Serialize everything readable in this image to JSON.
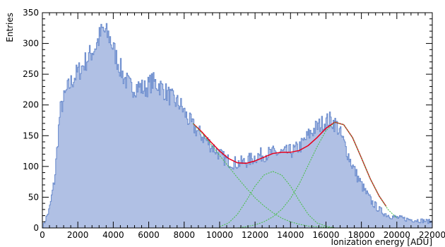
{
  "chart_data": {
    "type": "area",
    "title": "",
    "xlabel": "Ionization energy [ADU]",
    "ylabel": "Entries",
    "xlim": [
      0,
      22000
    ],
    "ylim": [
      0,
      350
    ],
    "grid": false,
    "legend": "none",
    "x_tick_values": [
      0,
      2000,
      4000,
      6000,
      8000,
      10000,
      12000,
      14000,
      16000,
      18000,
      20000,
      22000
    ],
    "x_tick_labels": [
      "0",
      "2000",
      "4000",
      "6000",
      "8000",
      "10000",
      "12000",
      "14000",
      "16000",
      "18000",
      "20000",
      "22000"
    ],
    "y_tick_values": [
      0,
      50,
      100,
      150,
      200,
      250,
      300,
      350
    ],
    "y_tick_labels": [
      "0",
      "50",
      "100",
      "150",
      "200",
      "250",
      "300",
      "350"
    ],
    "histogram": {
      "bin_width": 50,
      "x": [
        0,
        400,
        700,
        1000,
        1400,
        1800,
        2200,
        2600,
        3000,
        3400,
        3800,
        4200,
        4600,
        5000,
        5400,
        5800,
        6200,
        6600,
        7000,
        7400,
        7800,
        8200,
        8600,
        9000,
        9400,
        9800,
        10200,
        10600,
        11000,
        11400,
        11800,
        12200,
        12600,
        13000,
        13400,
        13800,
        14200,
        14600,
        15000,
        15400,
        15800,
        16200,
        16600,
        17000,
        17400,
        17800,
        18200,
        18600,
        19000,
        19400,
        19800,
        20200,
        20600,
        21000,
        21400,
        22000
      ],
      "y": [
        0,
        30,
        80,
        190,
        225,
        245,
        260,
        278,
        295,
        322,
        310,
        275,
        245,
        228,
        230,
        226,
        238,
        232,
        220,
        208,
        200,
        178,
        162,
        150,
        138,
        126,
        114,
        108,
        105,
        107,
        112,
        118,
        120,
        122,
        122,
        123,
        126,
        134,
        150,
        162,
        170,
        176,
        168,
        140,
        108,
        82,
        60,
        42,
        30,
        22,
        18,
        16,
        14,
        13,
        12,
        10
      ],
      "fill_color": "#b0c0e4",
      "line_color": "#6f8fcf"
    },
    "fit_curves": [
      {
        "type": "total",
        "color": "#e8001c",
        "x": [
          8500,
          9000,
          9500,
          10000,
          10500,
          11000,
          11500,
          12000,
          12500,
          13000,
          13500,
          14000,
          14500,
          15000,
          15500,
          16000,
          16500,
          17000,
          17500,
          18000,
          18500,
          19000,
          19400
        ],
        "y": [
          170,
          156,
          140,
          125,
          113,
          106,
          105,
          109,
          115,
          121,
          123,
          123,
          126,
          134,
          147,
          162,
          172,
          168,
          147,
          114,
          80,
          52,
          35
        ]
      },
      {
        "type": "component",
        "color": "#4cbf4c",
        "x": [
          8500,
          9000,
          9500,
          10000,
          10500,
          11000,
          11500,
          12000,
          12500,
          13000,
          13500,
          14000,
          14500,
          15000,
          15500,
          16000,
          16500
        ],
        "y": [
          170,
          154,
          137,
          118,
          100,
          82,
          65,
          49,
          36,
          25,
          16,
          10,
          6,
          3,
          2,
          1,
          0
        ]
      },
      {
        "type": "component",
        "color": "#4cbf4c",
        "x": [
          10000,
          10500,
          11000,
          11500,
          12000,
          12500,
          13000,
          13500,
          14000,
          14500,
          15000,
          15500,
          16000,
          16500
        ],
        "y": [
          2,
          8,
          22,
          44,
          68,
          86,
          92,
          86,
          68,
          44,
          22,
          8,
          3,
          0
        ]
      },
      {
        "type": "component",
        "color": "#4cbf4c",
        "x": [
          11000,
          11500,
          12000,
          12500,
          13000,
          13500,
          14000,
          14500,
          15000,
          15500,
          16000,
          16500,
          17000,
          17500,
          18000,
          18500,
          19000,
          19500,
          20000
        ],
        "y": [
          0,
          2,
          5,
          10,
          18,
          30,
          48,
          72,
          102,
          132,
          158,
          172,
          168,
          147,
          114,
          80,
          52,
          30,
          16
        ]
      }
    ]
  }
}
